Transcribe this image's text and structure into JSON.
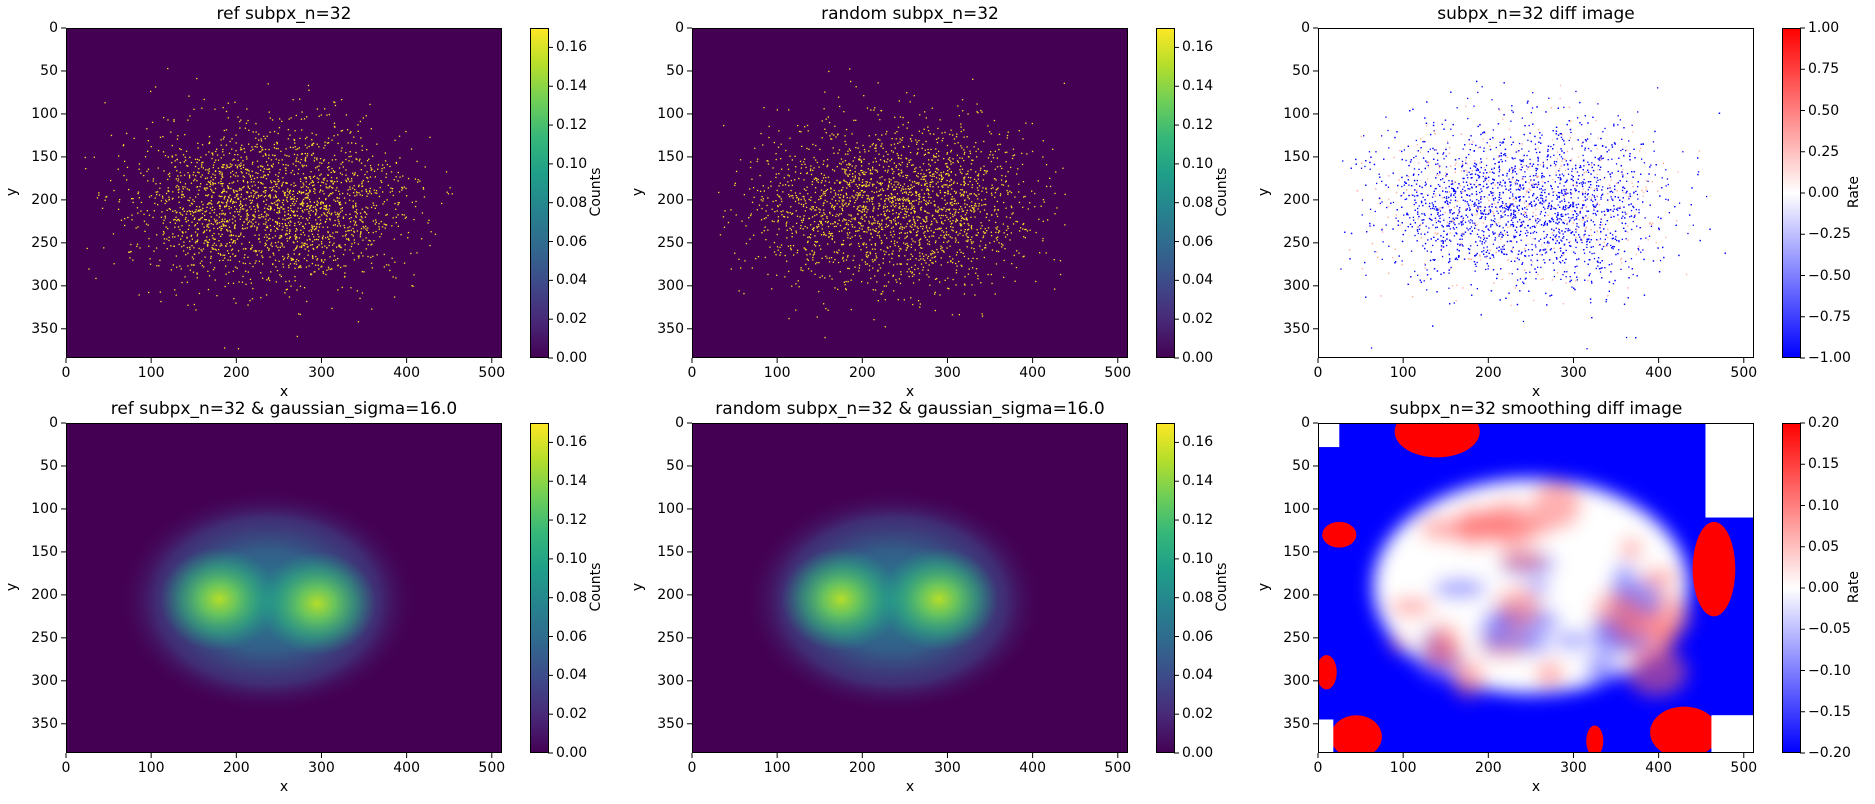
{
  "chart_data": [
    {
      "type": "heatmap",
      "id": "ref-raw",
      "title": "ref subpx_n=32",
      "xlabel": "x",
      "ylabel": "y",
      "xlim": [
        0,
        512
      ],
      "ylim": [
        384,
        0
      ],
      "xticks": [
        0,
        100,
        200,
        300,
        400,
        500
      ],
      "yticks": [
        0,
        50,
        100,
        150,
        200,
        250,
        300,
        350
      ],
      "colormap": "viridis",
      "colorbar": {
        "label": "Counts",
        "range": [
          0.0,
          0.17
        ],
        "ticks": [
          "0.00",
          "0.02",
          "0.04",
          "0.06",
          "0.08",
          "0.10",
          "0.12",
          "0.14",
          "0.16"
        ]
      },
      "content": {
        "kind": "sparse-points",
        "color": "#fde725",
        "background": "#440154",
        "clusters": [
          {
            "cx": 180,
            "cy": 205,
            "sx": 70,
            "sy": 55
          },
          {
            "cx": 295,
            "cy": 205,
            "sx": 65,
            "sy": 55
          }
        ]
      }
    },
    {
      "type": "heatmap",
      "id": "random-raw",
      "title": "random subpx_n=32",
      "xlabel": "x",
      "ylabel": "y",
      "xlim": [
        0,
        512
      ],
      "ylim": [
        384,
        0
      ],
      "xticks": [
        0,
        100,
        200,
        300,
        400,
        500
      ],
      "yticks": [
        0,
        50,
        100,
        150,
        200,
        250,
        300,
        350
      ],
      "colormap": "viridis",
      "colorbar": {
        "label": "Counts",
        "range": [
          0.0,
          0.17
        ],
        "ticks": [
          "0.00",
          "0.02",
          "0.04",
          "0.06",
          "0.08",
          "0.10",
          "0.12",
          "0.14",
          "0.16"
        ]
      },
      "content": {
        "kind": "sparse-points",
        "color": "#fde725",
        "background": "#440154",
        "clusters": [
          {
            "cx": 180,
            "cy": 205,
            "sx": 70,
            "sy": 55
          },
          {
            "cx": 295,
            "cy": 205,
            "sx": 65,
            "sy": 55
          }
        ]
      }
    },
    {
      "type": "heatmap",
      "id": "raw-diff",
      "title": "subpx_n=32 diff image",
      "xlabel": "x",
      "ylabel": "y",
      "xlim": [
        0,
        512
      ],
      "ylim": [
        384,
        0
      ],
      "xticks": [
        0,
        100,
        200,
        300,
        400,
        500
      ],
      "yticks": [
        0,
        50,
        100,
        150,
        200,
        250,
        300,
        350
      ],
      "colormap": "bwr",
      "colorbar": {
        "label": "Rate",
        "range": [
          -1.0,
          1.0
        ],
        "ticks": [
          "1.00",
          "0.75",
          "0.50",
          "0.25",
          "0.00",
          "−0.25",
          "−0.50",
          "−0.75",
          "−1.00"
        ]
      },
      "content": {
        "kind": "sparse-points",
        "color": "#0000ff",
        "accent": "#ffb0a0",
        "background": "#ffffff",
        "clusters": [
          {
            "cx": 180,
            "cy": 205,
            "sx": 70,
            "sy": 55
          },
          {
            "cx": 295,
            "cy": 205,
            "sx": 65,
            "sy": 55
          }
        ]
      }
    },
    {
      "type": "heatmap",
      "id": "ref-smooth",
      "title": "ref subpx_n=32 & gaussian_sigma=16.0",
      "xlabel": "x",
      "ylabel": "y",
      "xlim": [
        0,
        512
      ],
      "ylim": [
        384,
        0
      ],
      "xticks": [
        0,
        100,
        200,
        300,
        400,
        500
      ],
      "yticks": [
        0,
        50,
        100,
        150,
        200,
        250,
        300,
        350
      ],
      "colormap": "viridis",
      "colorbar": {
        "label": "Counts",
        "range": [
          0.0,
          0.17
        ],
        "ticks": [
          "0.00",
          "0.02",
          "0.04",
          "0.06",
          "0.08",
          "0.10",
          "0.12",
          "0.14",
          "0.16"
        ]
      },
      "content": {
        "kind": "smooth-blobs",
        "background": "#440154",
        "blobs": [
          {
            "cx": 180,
            "cy": 205,
            "peak": 0.14
          },
          {
            "cx": 295,
            "cy": 210,
            "peak": 0.13
          }
        ]
      }
    },
    {
      "type": "heatmap",
      "id": "random-smooth",
      "title": "random subpx_n=32 & gaussian_sigma=16.0",
      "xlabel": "x",
      "ylabel": "y",
      "xlim": [
        0,
        512
      ],
      "ylim": [
        384,
        0
      ],
      "xticks": [
        0,
        100,
        200,
        300,
        400,
        500
      ],
      "yticks": [
        0,
        50,
        100,
        150,
        200,
        250,
        300,
        350
      ],
      "colormap": "viridis",
      "colorbar": {
        "label": "Counts",
        "range": [
          0.0,
          0.17
        ],
        "ticks": [
          "0.00",
          "0.02",
          "0.04",
          "0.06",
          "0.08",
          "0.10",
          "0.12",
          "0.14",
          "0.16"
        ]
      },
      "content": {
        "kind": "smooth-blobs",
        "background": "#440154",
        "blobs": [
          {
            "cx": 175,
            "cy": 205,
            "peak": 0.14
          },
          {
            "cx": 290,
            "cy": 205,
            "peak": 0.13
          }
        ]
      }
    },
    {
      "type": "heatmap",
      "id": "smooth-diff",
      "title": "subpx_n=32 smoothing diff image",
      "xlabel": "x",
      "ylabel": "y",
      "xlim": [
        0,
        512
      ],
      "ylim": [
        384,
        0
      ],
      "xticks": [
        0,
        100,
        200,
        300,
        400,
        500
      ],
      "yticks": [
        0,
        50,
        100,
        150,
        200,
        250,
        300,
        350
      ],
      "colormap": "bwr",
      "colorbar": {
        "label": "Rate",
        "range": [
          -0.2,
          0.2
        ],
        "ticks": [
          "0.20",
          "0.15",
          "0.10",
          "0.05",
          "0.00",
          "−0.05",
          "−0.10",
          "−0.15",
          "−0.20"
        ]
      },
      "content": {
        "kind": "diff-field",
        "background": "#0000ff",
        "accent_pos": "#ff0000",
        "accent_neg": "#0000ff"
      }
    }
  ]
}
